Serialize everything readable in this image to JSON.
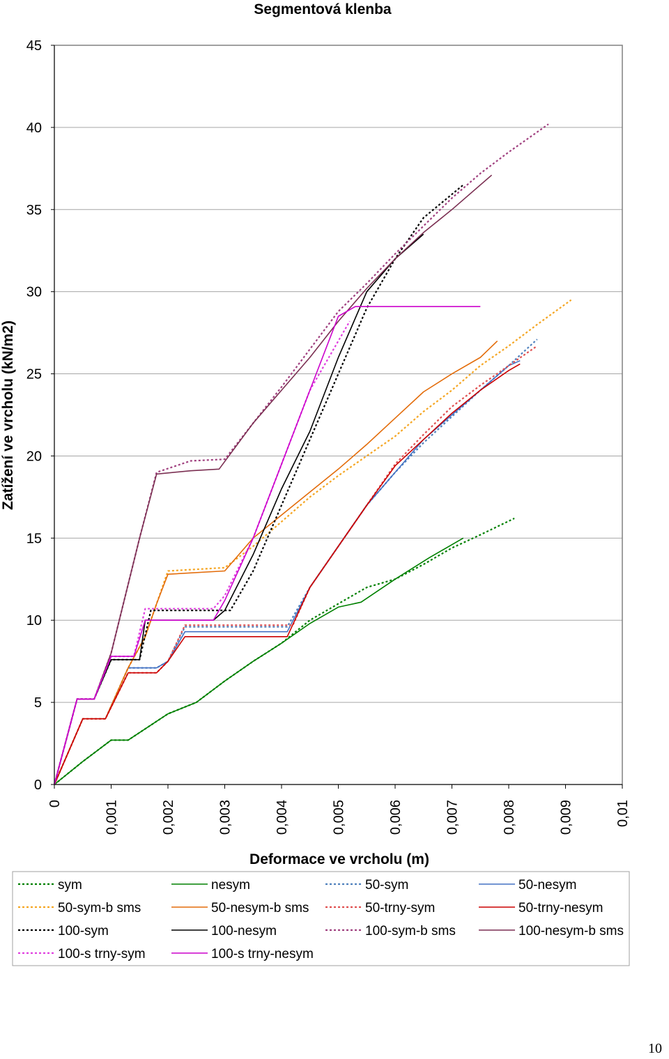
{
  "page_number": "10",
  "chart_data": {
    "type": "line",
    "title": "Segmentová klenba",
    "xlabel": "Deformace ve vrcholu (m)",
    "ylabel": "Zatížení ve vrcholu (kN/m2)",
    "xlim": [
      0,
      0.01
    ],
    "ylim": [
      0,
      45
    ],
    "x_ticks": [
      "0",
      "0,001",
      "0,002",
      "0,003",
      "0,004",
      "0,005",
      "0,006",
      "0,007",
      "0,008",
      "0,009",
      "0,01"
    ],
    "y_ticks": [
      "0",
      "5",
      "10",
      "15",
      "20",
      "25",
      "30",
      "35",
      "40",
      "45"
    ],
    "grid": "horizontal",
    "legend_position": "bottom",
    "series": [
      {
        "name": "sym",
        "color": "#008000",
        "dash": "dotted",
        "points": [
          [
            0,
            0
          ],
          [
            0.0005,
            1.4
          ],
          [
            0.001,
            2.7
          ],
          [
            0.0013,
            2.7
          ],
          [
            0.002,
            4.3
          ],
          [
            0.0025,
            5
          ],
          [
            0.003,
            6.3
          ],
          [
            0.0035,
            7.5
          ],
          [
            0.004,
            8.6
          ],
          [
            0.0045,
            10
          ],
          [
            0.005,
            11
          ],
          [
            0.0055,
            12
          ],
          [
            0.006,
            12.5
          ],
          [
            0.0065,
            13.4
          ],
          [
            0.007,
            14.4
          ],
          [
            0.0075,
            15.2
          ],
          [
            0.0081,
            16.2
          ]
        ]
      },
      {
        "name": "nesym",
        "color": "#008000",
        "dash": "solid",
        "points": [
          [
            0,
            0
          ],
          [
            0.0005,
            1.4
          ],
          [
            0.001,
            2.7
          ],
          [
            0.0013,
            2.7
          ],
          [
            0.002,
            4.3
          ],
          [
            0.0025,
            5
          ],
          [
            0.003,
            6.3
          ],
          [
            0.0035,
            7.5
          ],
          [
            0.004,
            8.6
          ],
          [
            0.0045,
            9.8
          ],
          [
            0.005,
            10.8
          ],
          [
            0.0054,
            11.1
          ],
          [
            0.006,
            12.5
          ],
          [
            0.0066,
            13.8
          ],
          [
            0.0072,
            15
          ]
        ]
      },
      {
        "name": "50-sym",
        "color": "#4f81bd",
        "dash": "dotted",
        "points": [
          [
            0,
            0
          ],
          [
            0.0005,
            4
          ],
          [
            0.0009,
            4
          ],
          [
            0.0013,
            7.1
          ],
          [
            0.0018,
            7.1
          ],
          [
            0.002,
            7.5
          ],
          [
            0.0023,
            9.6
          ],
          [
            0.0041,
            9.6
          ],
          [
            0.0045,
            12
          ],
          [
            0.005,
            14.5
          ],
          [
            0.0055,
            17
          ],
          [
            0.006,
            19
          ],
          [
            0.0065,
            20.8
          ],
          [
            0.007,
            22.4
          ],
          [
            0.0075,
            24
          ],
          [
            0.008,
            25.5
          ],
          [
            0.0085,
            27.1
          ]
        ]
      },
      {
        "name": "50-nesym",
        "color": "#4472c4",
        "dash": "solid",
        "points": [
          [
            0,
            0
          ],
          [
            0.0005,
            4
          ],
          [
            0.0009,
            4
          ],
          [
            0.0013,
            7.1
          ],
          [
            0.0018,
            7.1
          ],
          [
            0.002,
            7.5
          ],
          [
            0.0023,
            9.3
          ],
          [
            0.0041,
            9.3
          ],
          [
            0.0045,
            12
          ],
          [
            0.005,
            14.5
          ],
          [
            0.0055,
            17
          ],
          [
            0.006,
            19
          ],
          [
            0.0065,
            21
          ],
          [
            0.007,
            22.5
          ],
          [
            0.0075,
            24
          ],
          [
            0.008,
            25.5
          ],
          [
            0.0082,
            25.8
          ]
        ]
      },
      {
        "name": "50-sym-b sms",
        "color": "#f5a623",
        "dash": "dotted",
        "points": [
          [
            0,
            0
          ],
          [
            0.0005,
            4
          ],
          [
            0.0009,
            4
          ],
          [
            0.0013,
            7.1
          ],
          [
            0.0016,
            9
          ],
          [
            0.0018,
            11
          ],
          [
            0.002,
            13
          ],
          [
            0.003,
            13.2
          ],
          [
            0.0035,
            14.5
          ],
          [
            0.004,
            16
          ],
          [
            0.0045,
            17.5
          ],
          [
            0.005,
            18.8
          ],
          [
            0.0055,
            20
          ],
          [
            0.006,
            21.2
          ],
          [
            0.0065,
            22.7
          ],
          [
            0.007,
            24
          ],
          [
            0.0075,
            25.5
          ],
          [
            0.008,
            26.7
          ],
          [
            0.0085,
            28
          ],
          [
            0.0091,
            29.5
          ]
        ]
      },
      {
        "name": "50-nesym-b sms",
        "color": "#e36c0a",
        "dash": "solid",
        "points": [
          [
            0,
            0
          ],
          [
            0.0005,
            4
          ],
          [
            0.0009,
            4
          ],
          [
            0.0013,
            7.1
          ],
          [
            0.0016,
            9
          ],
          [
            0.0018,
            11
          ],
          [
            0.002,
            12.8
          ],
          [
            0.003,
            13
          ],
          [
            0.0035,
            15
          ],
          [
            0.004,
            16.4
          ],
          [
            0.0045,
            17.8
          ],
          [
            0.005,
            19.2
          ],
          [
            0.0055,
            20.7
          ],
          [
            0.006,
            22.3
          ],
          [
            0.0065,
            23.9
          ],
          [
            0.007,
            25
          ],
          [
            0.0075,
            26
          ],
          [
            0.0078,
            27
          ]
        ]
      },
      {
        "name": "50-trny-sym",
        "color": "#e05050",
        "dash": "dotted",
        "points": [
          [
            0,
            0
          ],
          [
            0.0005,
            4
          ],
          [
            0.0009,
            4
          ],
          [
            0.0013,
            6.8
          ],
          [
            0.0018,
            6.8
          ],
          [
            0.002,
            7.5
          ],
          [
            0.0023,
            9.7
          ],
          [
            0.0042,
            9.7
          ],
          [
            0.0045,
            12
          ],
          [
            0.005,
            14.5
          ],
          [
            0.0055,
            17
          ],
          [
            0.006,
            19.5
          ],
          [
            0.0065,
            21.3
          ],
          [
            0.007,
            23
          ],
          [
            0.0075,
            24.3
          ],
          [
            0.008,
            25.5
          ],
          [
            0.0085,
            26.7
          ]
        ]
      },
      {
        "name": "50-trny-nesym",
        "color": "#cc0000",
        "dash": "solid",
        "points": [
          [
            0,
            0
          ],
          [
            0.0005,
            4
          ],
          [
            0.0009,
            4
          ],
          [
            0.0013,
            6.8
          ],
          [
            0.0018,
            6.8
          ],
          [
            0.002,
            7.5
          ],
          [
            0.0023,
            9
          ],
          [
            0.0041,
            9
          ],
          [
            0.0045,
            12
          ],
          [
            0.005,
            14.5
          ],
          [
            0.0055,
            17
          ],
          [
            0.006,
            19.4
          ],
          [
            0.0065,
            21
          ],
          [
            0.007,
            22.6
          ],
          [
            0.0075,
            24
          ],
          [
            0.008,
            25.2
          ],
          [
            0.0082,
            25.6
          ]
        ]
      },
      {
        "name": "100-sym",
        "color": "#000000",
        "dash": "dotted",
        "points": [
          [
            0,
            0
          ],
          [
            0.0004,
            5.2
          ],
          [
            0.0007,
            5.2
          ],
          [
            0.001,
            7.6
          ],
          [
            0.0015,
            7.6
          ],
          [
            0.0017,
            10.6
          ],
          [
            0.0031,
            10.6
          ],
          [
            0.0035,
            13
          ],
          [
            0.004,
            17
          ],
          [
            0.0045,
            21
          ],
          [
            0.005,
            25
          ],
          [
            0.0055,
            29
          ],
          [
            0.006,
            32
          ],
          [
            0.0065,
            34.5
          ],
          [
            0.0072,
            36.5
          ]
        ]
      },
      {
        "name": "100-nesym",
        "color": "#000000",
        "dash": "solid",
        "points": [
          [
            0,
            0
          ],
          [
            0.0004,
            5.2
          ],
          [
            0.0007,
            5.2
          ],
          [
            0.001,
            7.6
          ],
          [
            0.0015,
            7.6
          ],
          [
            0.0016,
            10
          ],
          [
            0.0028,
            10
          ],
          [
            0.003,
            10.6
          ],
          [
            0.0035,
            14
          ],
          [
            0.004,
            18
          ],
          [
            0.0045,
            21.5
          ],
          [
            0.005,
            26
          ],
          [
            0.0055,
            30
          ],
          [
            0.006,
            32
          ],
          [
            0.0065,
            33.5
          ]
        ]
      },
      {
        "name": "100-sym-b sms",
        "color": "#a0407f",
        "dash": "dotted",
        "points": [
          [
            0,
            0
          ],
          [
            0.0004,
            5.2
          ],
          [
            0.0007,
            5.2
          ],
          [
            0.001,
            8
          ],
          [
            0.0015,
            15
          ],
          [
            0.0018,
            19
          ],
          [
            0.0024,
            19.7
          ],
          [
            0.003,
            19.8
          ],
          [
            0.0035,
            22
          ],
          [
            0.004,
            24.2
          ],
          [
            0.0045,
            26.5
          ],
          [
            0.005,
            28.8
          ],
          [
            0.0055,
            30.5
          ],
          [
            0.006,
            32.3
          ],
          [
            0.0065,
            34
          ],
          [
            0.007,
            35.7
          ],
          [
            0.0075,
            37.2
          ],
          [
            0.008,
            38.5
          ],
          [
            0.0087,
            40.2
          ]
        ]
      },
      {
        "name": "100-nesym-b sms",
        "color": "#7b2f52",
        "dash": "solid",
        "points": [
          [
            0,
            0
          ],
          [
            0.0004,
            5.2
          ],
          [
            0.0007,
            5.2
          ],
          [
            0.001,
            8
          ],
          [
            0.0015,
            15
          ],
          [
            0.0018,
            18.9
          ],
          [
            0.0024,
            19.1
          ],
          [
            0.0029,
            19.2
          ],
          [
            0.0035,
            22
          ],
          [
            0.004,
            24
          ],
          [
            0.0045,
            26
          ],
          [
            0.005,
            28.2
          ],
          [
            0.0055,
            30.2
          ],
          [
            0.006,
            32
          ],
          [
            0.0065,
            33.6
          ],
          [
            0.007,
            35
          ],
          [
            0.0077,
            37.1
          ]
        ]
      },
      {
        "name": "100-s trny-sym",
        "color": "#e040e0",
        "dash": "dotted",
        "points": [
          [
            0,
            0
          ],
          [
            0.0004,
            5.2
          ],
          [
            0.0007,
            5.2
          ],
          [
            0.001,
            7.8
          ],
          [
            0.0014,
            7.8
          ],
          [
            0.0016,
            10.7
          ],
          [
            0.0028,
            10.7
          ],
          [
            0.003,
            11.5
          ],
          [
            0.0035,
            15
          ],
          [
            0.004,
            19.5
          ],
          [
            0.0045,
            24
          ],
          [
            0.0052,
            28.2
          ]
        ]
      },
      {
        "name": "100-s trny-nesym",
        "color": "#cc00cc",
        "dash": "solid",
        "points": [
          [
            0,
            0
          ],
          [
            0.0004,
            5.2
          ],
          [
            0.0007,
            5.2
          ],
          [
            0.001,
            7.8
          ],
          [
            0.0014,
            7.8
          ],
          [
            0.0016,
            10
          ],
          [
            0.0028,
            10
          ],
          [
            0.003,
            11.2
          ],
          [
            0.0035,
            15
          ],
          [
            0.004,
            19.5
          ],
          [
            0.0045,
            24
          ],
          [
            0.005,
            28.5
          ],
          [
            0.0053,
            29.1
          ],
          [
            0.0075,
            29.1
          ]
        ]
      }
    ]
  }
}
